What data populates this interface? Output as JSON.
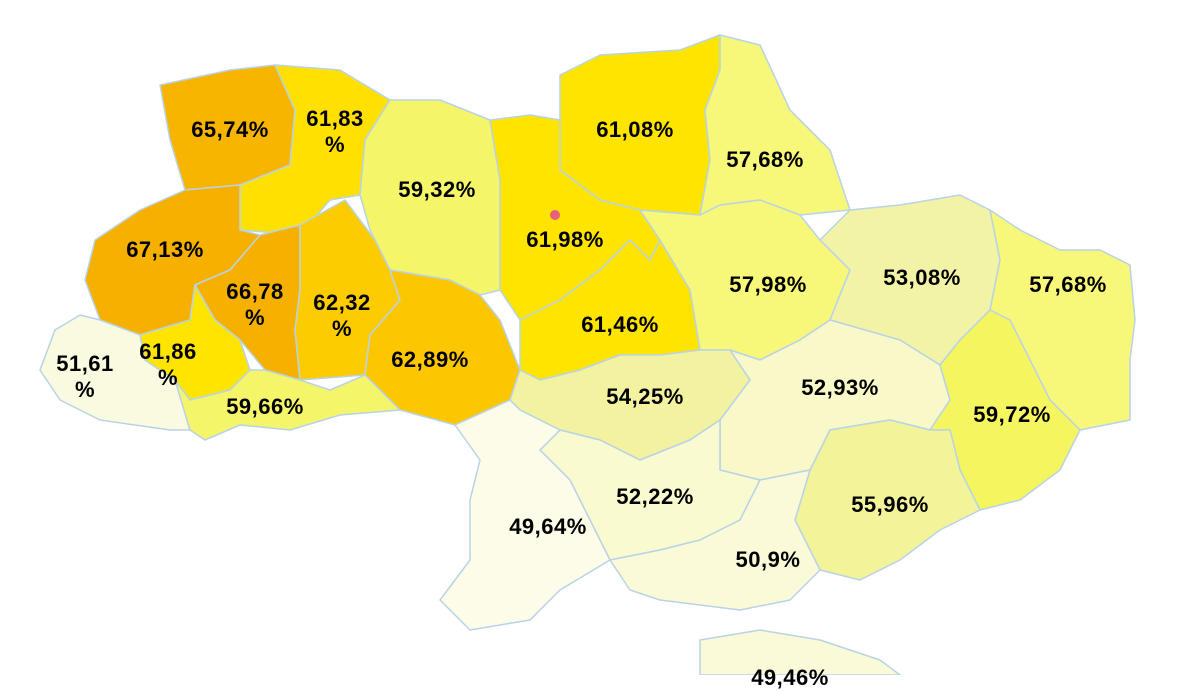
{
  "regions": [
    {
      "label": "65,74%",
      "color": "#f7b500"
    },
    {
      "label": "61,83 %",
      "color": "#ffe000"
    },
    {
      "label": "59,32%",
      "color": "#f5f56a"
    },
    {
      "label": "61,08%",
      "color": "#ffe400"
    },
    {
      "label": "57,68%",
      "color": "#f7f77a"
    },
    {
      "label": "67,13%",
      "color": "#f5b000"
    },
    {
      "label": "61,98%",
      "color": "#ffe400"
    },
    {
      "label": "66,78 %",
      "color": "#f5b000"
    },
    {
      "label": "62,32 %",
      "color": "#fccb00"
    },
    {
      "label": "62,89%",
      "color": "#fcc600"
    },
    {
      "label": "61,46%",
      "color": "#ffe400"
    },
    {
      "label": "57,98%",
      "color": "#f7f77a"
    },
    {
      "label": "53,08%",
      "color": "#f3f3a8"
    },
    {
      "label": "57,68%",
      "color": "#f7f77a"
    },
    {
      "label": "51,61 %",
      "color": "#fafae0"
    },
    {
      "label": "61,86 %",
      "color": "#ffe400"
    },
    {
      "label": "59,66%",
      "color": "#f5f56a"
    },
    {
      "label": "54,25%",
      "color": "#f2f2a0"
    },
    {
      "label": "52,93%",
      "color": "#f8f8c8"
    },
    {
      "label": "59,72%",
      "color": "#f5f560"
    },
    {
      "label": "52,22%",
      "color": "#fafad0"
    },
    {
      "label": "49,64%",
      "color": "#fcfce8"
    },
    {
      "label": "55,96%",
      "color": "#f3f39a"
    },
    {
      "label": "50,9%",
      "color": "#fafad8"
    },
    {
      "label": "49,46%",
      "color": "#fafad8"
    }
  ]
}
